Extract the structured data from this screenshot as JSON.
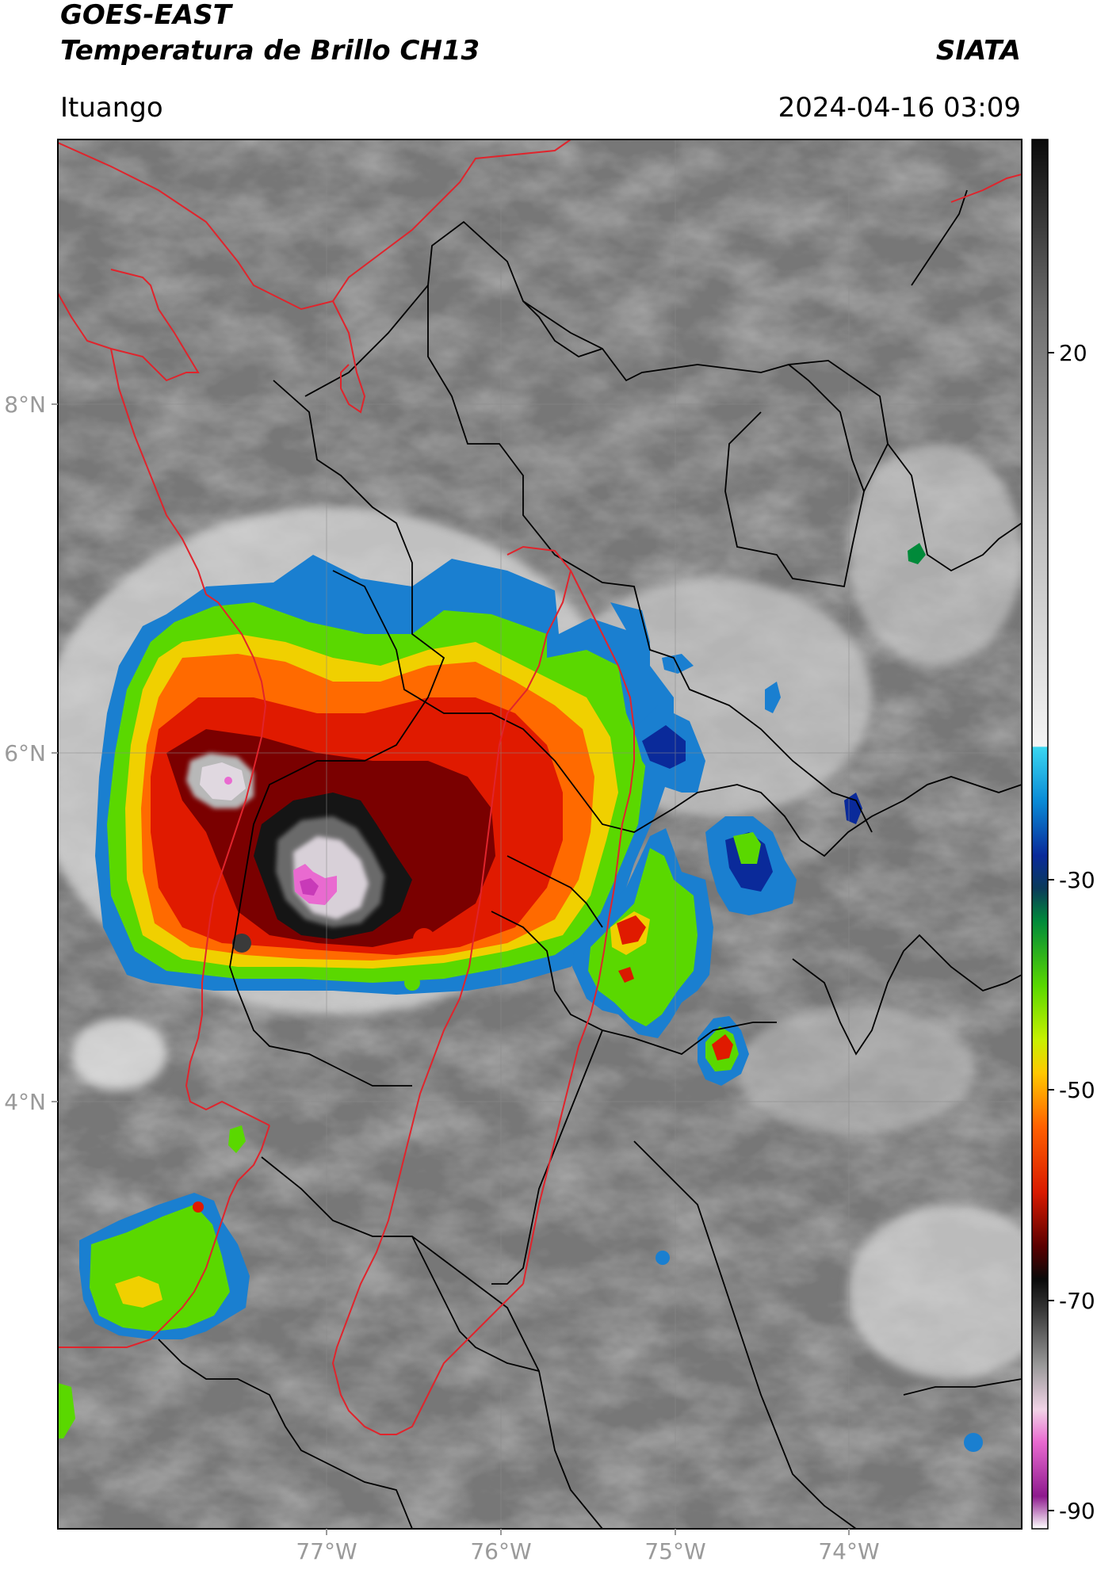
{
  "header": {
    "satellite": "GOES-EAST",
    "product": "Temperatura de Brillo CH13",
    "agency": "SIATA",
    "location": "Ituango",
    "datetime": "2024-04-16 03:09"
  },
  "map": {
    "lon_labels": [
      "77°W",
      "76°W",
      "75°W",
      "74°W"
    ],
    "lat_labels": [
      "8°N",
      "6°N",
      "4°N"
    ],
    "lon_range": [
      -78.55,
      -73.0
    ],
    "lat_range": [
      1.6,
      9.55
    ]
  },
  "colorbar": {
    "ticks": [
      "20",
      "-30",
      "-50",
      "-70",
      "-90"
    ],
    "range": [
      -92,
      36
    ],
    "stops": [
      {
        "value": -92,
        "color": "#ffffff"
      },
      {
        "value": -89,
        "color": "#8e1a8e"
      },
      {
        "value": -84,
        "color": "#e96ad0"
      },
      {
        "value": -81,
        "color": "#f1d3e6"
      },
      {
        "value": -77,
        "color": "#9a9a9a"
      },
      {
        "value": -72,
        "color": "#3a3a3a"
      },
      {
        "value": -69,
        "color": "#0a0a0a"
      },
      {
        "value": -66,
        "color": "#5a0000"
      },
      {
        "value": -61,
        "color": "#d91a00"
      },
      {
        "value": -55,
        "color": "#ff6000"
      },
      {
        "value": -50,
        "color": "#ffc800"
      },
      {
        "value": -47,
        "color": "#c8f000"
      },
      {
        "value": -42,
        "color": "#5ad800"
      },
      {
        "value": -36,
        "color": "#008a3a"
      },
      {
        "value": -33,
        "color": "#0a3a5a"
      },
      {
        "value": -30,
        "color": "#0a2a9a"
      },
      {
        "value": -25,
        "color": "#0a8ad6"
      },
      {
        "value": -20,
        "color": "#3ad6f0"
      },
      {
        "value": -19.9,
        "color": "#f4f4f4"
      },
      {
        "value": 0,
        "color": "#bdbdbd"
      },
      {
        "value": 20,
        "color": "#6e6e6e"
      },
      {
        "value": 36,
        "color": "#0a0a0a"
      }
    ]
  },
  "colors": {
    "boundary_national": "#e0242c",
    "boundary_admin": "#000000",
    "grid": "#8a8a8a"
  }
}
